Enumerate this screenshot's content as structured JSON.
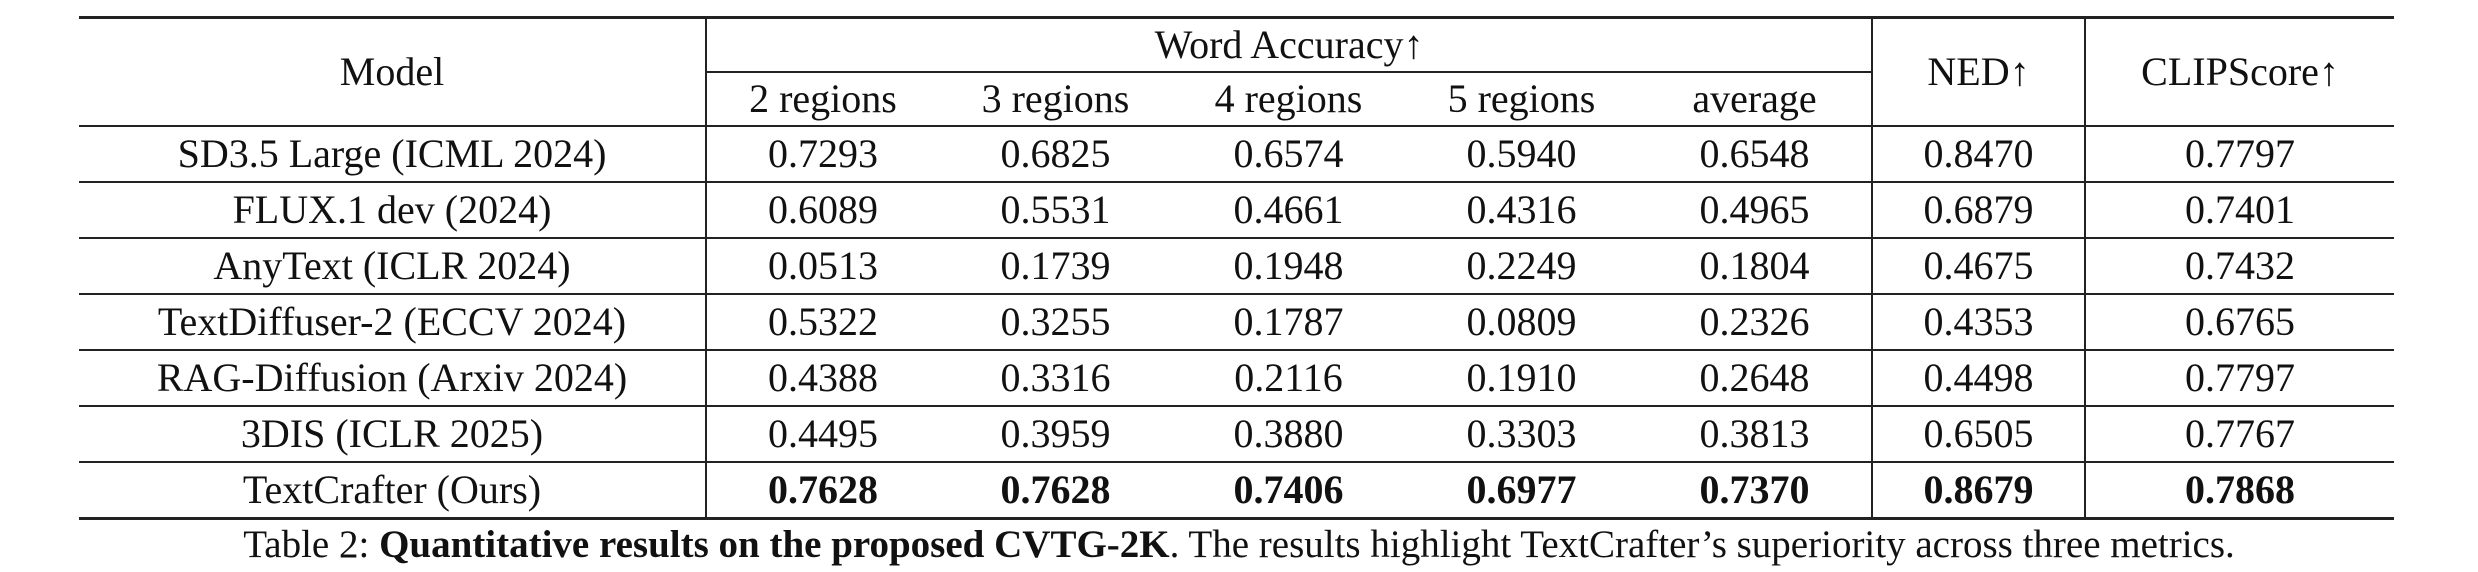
{
  "table": {
    "headers": {
      "model": "Model",
      "group": "Word Accuracy↑",
      "sub": [
        "2 regions",
        "3 regions",
        "4 regions",
        "5 regions",
        "average"
      ],
      "ned": "NED↑",
      "clip": "CLIPScore↑"
    },
    "rows": [
      [
        "SD3.5 Large (ICML 2024)",
        "0.7293",
        "0.6825",
        "0.6574",
        "0.5940",
        "0.6548",
        "0.8470",
        "0.7797"
      ],
      [
        "FLUX.1 dev (2024)",
        "0.6089",
        "0.5531",
        "0.4661",
        "0.4316",
        "0.4965",
        "0.6879",
        "0.7401"
      ],
      [
        "AnyText (ICLR 2024)",
        "0.0513",
        "0.1739",
        "0.1948",
        "0.2249",
        "0.1804",
        "0.4675",
        "0.7432"
      ],
      [
        "TextDiffuser-2 (ECCV 2024)",
        "0.5322",
        "0.3255",
        "0.1787",
        "0.0809",
        "0.2326",
        "0.4353",
        "0.6765"
      ],
      [
        "RAG-Diffusion (Arxiv 2024)",
        "0.4388",
        "0.3316",
        "0.2116",
        "0.1910",
        "0.2648",
        "0.4498",
        "0.7797"
      ],
      [
        "3DIS (ICLR 2025)",
        "0.4495",
        "0.3959",
        "0.3880",
        "0.3303",
        "0.3813",
        "0.6505",
        "0.7767"
      ],
      [
        "TextCrafter (Ours)",
        "0.7628",
        "0.7628",
        "0.7406",
        "0.6977",
        "0.7370",
        "0.8679",
        "0.7868"
      ]
    ]
  },
  "caption": {
    "label": "Table 2:",
    "bold": "Quantitative results on the proposed CVTG-2K",
    "rest": ". The results highlight TextCrafter’s superiority across three metrics."
  }
}
